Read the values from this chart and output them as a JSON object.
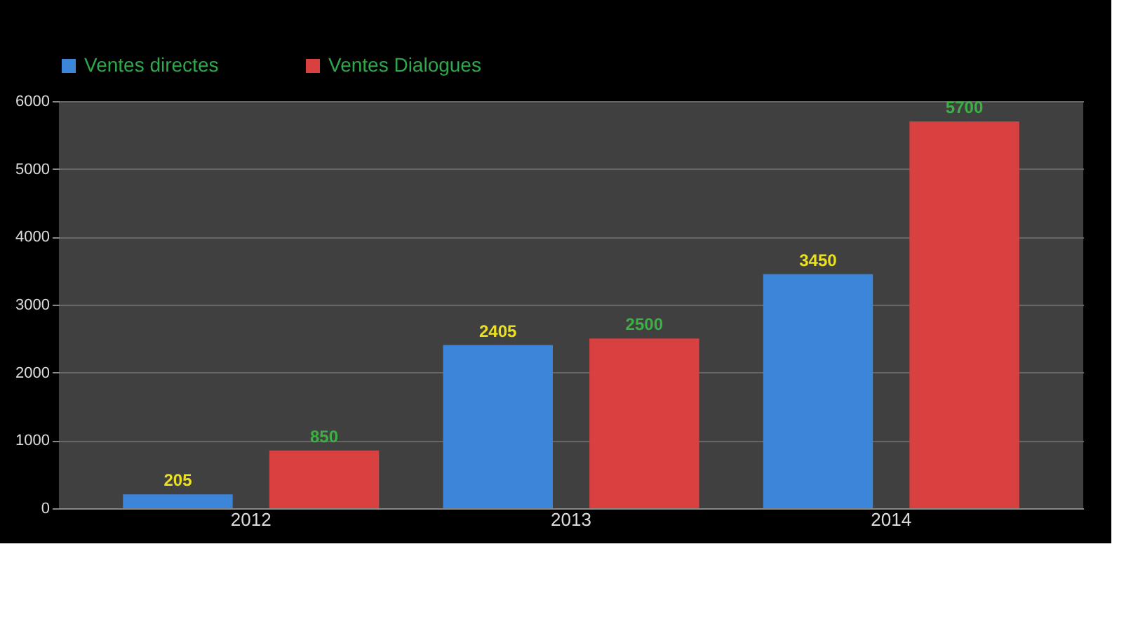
{
  "chart_data": {
    "type": "bar",
    "categories": [
      "2012",
      "2013",
      "2014"
    ],
    "series": [
      {
        "name": "Ventes directes",
        "color": "#3d85d8",
        "values": [
          205,
          2405,
          3450
        ]
      },
      {
        "name": "Ventes Dialogues",
        "color": "#d94040",
        "values": [
          850,
          2500,
          5700
        ]
      }
    ],
    "ylim": [
      0,
      6000
    ],
    "yticks": [
      0,
      1000,
      2000,
      3000,
      4000,
      5000,
      6000
    ],
    "grid": "y",
    "legend": "top",
    "data_labels": true
  }
}
